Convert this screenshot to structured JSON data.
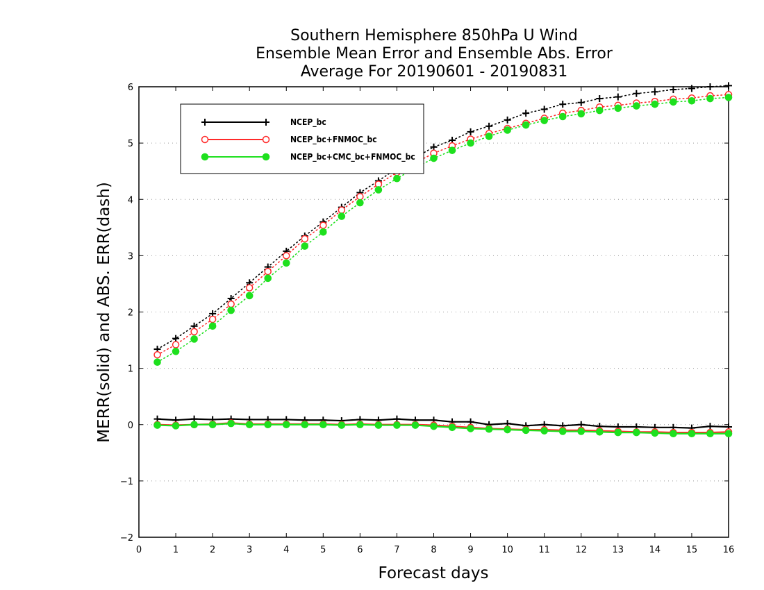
{
  "chart_data": {
    "type": "line",
    "title": [
      "Southern Hemisphere 850hPa U Wind",
      "Ensemble Mean Error and Ensemble Abs. Error",
      "Average For 20190601 - 20190831"
    ],
    "xlabel": "Forecast days",
    "ylabel": "MERR(solid) and ABS. ERR(dash)",
    "xlim": [
      0,
      16
    ],
    "ylim": [
      -2,
      6
    ],
    "xticks": [
      0,
      1,
      2,
      3,
      4,
      5,
      6,
      7,
      8,
      9,
      10,
      11,
      12,
      13,
      14,
      15,
      16
    ],
    "yticks": [
      -2,
      -1,
      0,
      1,
      2,
      3,
      4,
      5,
      6
    ],
    "ytick_labels": [
      "−2",
      "−1",
      "0",
      "1",
      "2",
      "3",
      "4",
      "5",
      "6"
    ],
    "grid": "horizontal dotted",
    "legend_position": "top-left",
    "x": [
      0.5,
      1,
      1.5,
      2,
      2.5,
      3,
      3.5,
      4,
      4.5,
      5,
      5.5,
      6,
      6.5,
      7,
      7.5,
      8,
      8.5,
      9,
      9.5,
      10,
      10.5,
      11,
      11.5,
      12,
      12.5,
      13,
      13.5,
      14,
      14.5,
      15,
      15.5,
      16
    ],
    "series": [
      {
        "name": "NCEP_bc",
        "color": "#000000",
        "marker": "plus",
        "merr": [
          0.1,
          0.08,
          0.1,
          0.09,
          0.1,
          0.09,
          0.09,
          0.09,
          0.08,
          0.08,
          0.07,
          0.09,
          0.08,
          0.1,
          0.08,
          0.08,
          0.05,
          0.05,
          0.0,
          0.02,
          -0.02,
          0.0,
          -0.02,
          0.0,
          -0.03,
          -0.04,
          -0.04,
          -0.05,
          -0.05,
          -0.06,
          -0.03,
          -0.04
        ],
        "abs_err": [
          1.34,
          1.53,
          1.75,
          1.97,
          2.24,
          2.52,
          2.8,
          3.08,
          3.35,
          3.6,
          3.86,
          4.12,
          4.33,
          4.55,
          4.74,
          4.93,
          5.05,
          5.2,
          5.3,
          5.41,
          5.53,
          5.6,
          5.69,
          5.72,
          5.79,
          5.82,
          5.88,
          5.91,
          5.95,
          5.97,
          6.0,
          6.02
        ]
      },
      {
        "name": "NCEP_bc+FNMOC_bc",
        "color": "#ff2a2a",
        "marker": "open-circle",
        "merr": [
          0.0,
          -0.01,
          0.0,
          0.01,
          0.03,
          0.01,
          0.01,
          0.01,
          0.01,
          0.01,
          0.0,
          0.01,
          0.0,
          0.0,
          0.0,
          -0.01,
          -0.03,
          -0.05,
          -0.07,
          -0.08,
          -0.09,
          -0.09,
          -0.1,
          -0.1,
          -0.11,
          -0.12,
          -0.13,
          -0.13,
          -0.14,
          -0.14,
          -0.14,
          -0.13
        ],
        "abs_err": [
          1.24,
          1.42,
          1.65,
          1.87,
          2.14,
          2.43,
          2.72,
          3.0,
          3.3,
          3.54,
          3.81,
          4.05,
          4.27,
          4.48,
          4.65,
          4.82,
          4.95,
          5.07,
          5.17,
          5.26,
          5.35,
          5.44,
          5.53,
          5.58,
          5.64,
          5.67,
          5.71,
          5.74,
          5.78,
          5.8,
          5.84,
          5.86
        ]
      },
      {
        "name": "NCEP_bc+CMC_bc+FNMOC_bc",
        "color": "#1ee01e",
        "marker": "filled-circle",
        "merr": [
          -0.01,
          -0.02,
          0.0,
          0.0,
          0.02,
          0.0,
          0.0,
          0.0,
          0.0,
          0.0,
          -0.01,
          0.0,
          -0.01,
          -0.01,
          -0.01,
          -0.03,
          -0.05,
          -0.07,
          -0.08,
          -0.09,
          -0.1,
          -0.11,
          -0.12,
          -0.12,
          -0.13,
          -0.14,
          -0.14,
          -0.15,
          -0.16,
          -0.16,
          -0.16,
          -0.16
        ],
        "abs_err": [
          1.11,
          1.3,
          1.52,
          1.75,
          2.03,
          2.29,
          2.6,
          2.87,
          3.17,
          3.42,
          3.7,
          3.94,
          4.17,
          4.37,
          4.56,
          4.73,
          4.87,
          5.0,
          5.12,
          5.23,
          5.32,
          5.4,
          5.47,
          5.52,
          5.58,
          5.62,
          5.66,
          5.69,
          5.73,
          5.75,
          5.79,
          5.81
        ]
      }
    ]
  }
}
